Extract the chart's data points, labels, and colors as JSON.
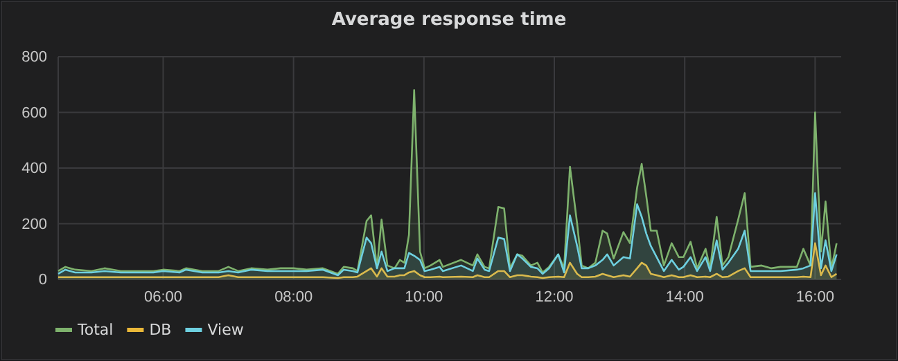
{
  "chart_data": {
    "type": "area",
    "title": "Average response time",
    "x": [
      4.39,
      4.5,
      4.65,
      4.9,
      5.1,
      5.35,
      5.6,
      5.85,
      6.0,
      6.25,
      6.35,
      6.6,
      6.85,
      7.0,
      7.15,
      7.35,
      7.6,
      7.8,
      8.0,
      8.2,
      8.45,
      8.68,
      8.77,
      8.91,
      8.98,
      9.12,
      9.19,
      9.28,
      9.35,
      9.44,
      9.55,
      9.63,
      9.7,
      9.77,
      9.85,
      9.94,
      10.01,
      10.1,
      10.24,
      10.29,
      10.57,
      10.75,
      10.82,
      10.93,
      11.0,
      11.14,
      11.23,
      11.32,
      11.43,
      11.51,
      11.64,
      11.74,
      11.82,
      11.92,
      12.06,
      12.15,
      12.24,
      12.35,
      12.42,
      12.52,
      12.63,
      12.74,
      12.81,
      12.91,
      13.06,
      13.16,
      13.27,
      13.34,
      13.41,
      13.48,
      13.57,
      13.68,
      13.8,
      13.91,
      13.98,
      14.09,
      14.19,
      14.32,
      14.39,
      14.49,
      14.58,
      14.67,
      14.82,
      14.92,
      15.01,
      15.18,
      15.33,
      15.47,
      15.72,
      15.82,
      15.93,
      16.0,
      16.09,
      16.16,
      16.25,
      16.33
    ],
    "series": [
      {
        "name": "Total",
        "color": "#7eb26d",
        "values": [
          30,
          45,
          35,
          30,
          40,
          30,
          30,
          30,
          35,
          30,
          40,
          30,
          30,
          45,
          30,
          40,
          35,
          40,
          40,
          35,
          40,
          20,
          45,
          40,
          30,
          210,
          230,
          40,
          215,
          50,
          40,
          70,
          60,
          160,
          680,
          100,
          40,
          50,
          70,
          45,
          70,
          50,
          90,
          45,
          40,
          260,
          255,
          40,
          90,
          85,
          50,
          60,
          25,
          45,
          90,
          40,
          405,
          200,
          50,
          40,
          60,
          175,
          165,
          75,
          170,
          130,
          330,
          415,
          300,
          175,
          175,
          50,
          130,
          80,
          80,
          135,
          40,
          110,
          40,
          225,
          50,
          80,
          215,
          310,
          45,
          50,
          40,
          45,
          45,
          110,
          50,
          600,
          100,
          280,
          40,
          130
        ]
      },
      {
        "name": "DB",
        "color": "#eab839",
        "values": [
          8,
          8,
          8,
          8,
          8,
          8,
          8,
          8,
          8,
          8,
          8,
          8,
          8,
          15,
          8,
          8,
          8,
          8,
          8,
          8,
          8,
          5,
          8,
          8,
          10,
          30,
          40,
          10,
          40,
          10,
          10,
          15,
          15,
          25,
          30,
          15,
          8,
          8,
          10,
          8,
          10,
          8,
          15,
          8,
          8,
          30,
          30,
          8,
          15,
          15,
          10,
          8,
          5,
          8,
          10,
          8,
          60,
          20,
          8,
          8,
          10,
          20,
          15,
          8,
          15,
          10,
          40,
          60,
          50,
          20,
          15,
          8,
          15,
          8,
          8,
          15,
          8,
          10,
          8,
          20,
          8,
          10,
          30,
          40,
          8,
          8,
          8,
          8,
          8,
          10,
          8,
          130,
          15,
          50,
          8,
          20
        ]
      },
      {
        "name": "View",
        "color": "#6ed0e0",
        "values": [
          20,
          35,
          25,
          25,
          30,
          25,
          25,
          25,
          30,
          25,
          35,
          25,
          25,
          30,
          25,
          35,
          30,
          30,
          30,
          30,
          35,
          15,
          35,
          30,
          25,
          150,
          130,
          40,
          100,
          30,
          40,
          40,
          40,
          95,
          85,
          70,
          30,
          35,
          45,
          30,
          50,
          30,
          75,
          35,
          30,
          150,
          145,
          30,
          90,
          75,
          45,
          40,
          20,
          40,
          90,
          25,
          230,
          120,
          40,
          40,
          50,
          70,
          90,
          50,
          80,
          75,
          270,
          225,
          165,
          120,
          80,
          30,
          70,
          35,
          45,
          80,
          30,
          80,
          30,
          140,
          35,
          60,
          110,
          175,
          30,
          30,
          30,
          30,
          35,
          40,
          50,
          310,
          40,
          140,
          30,
          90
        ]
      }
    ],
    "xlim": [
      4.39,
      16.4
    ],
    "ylim": [
      0,
      800
    ],
    "xticks": [
      {
        "value": 6,
        "label": "06:00"
      },
      {
        "value": 8,
        "label": "08:00"
      },
      {
        "value": 10,
        "label": "10:00"
      },
      {
        "value": 12,
        "label": "12:00"
      },
      {
        "value": 14,
        "label": "14:00"
      },
      {
        "value": 16,
        "label": "16:00"
      }
    ],
    "yticks": [
      0,
      200,
      400,
      600,
      800
    ],
    "grid": true,
    "legend": "bottom"
  }
}
